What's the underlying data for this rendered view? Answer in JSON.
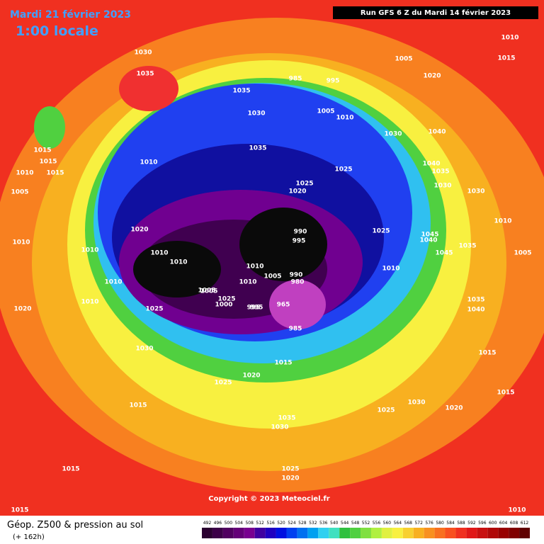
{
  "header": {
    "valid_date": "Mardi 21 février 2023",
    "local_time": "1:00 locale",
    "run_info": "Run GFS 6 Z du Mardi 14 février 2023"
  },
  "map": {
    "copyright": "Copyright © 2023 Meteociel.fr",
    "pressure_labels": [
      1030,
      1035,
      1005,
      1020,
      1015,
      1010,
      985,
      995,
      1005,
      1010,
      1035,
      1030,
      1040,
      1015,
      1015,
      1015,
      1010,
      1005,
      1010,
      1035,
      1030,
      1025,
      1020,
      1025,
      1040,
      1035,
      1030,
      1030,
      1025,
      1020,
      990,
      995,
      1010,
      1010,
      1010,
      1005,
      990,
      980,
      1010,
      995,
      965,
      985,
      1005,
      1025,
      1025,
      1010,
      1045,
      1040,
      1045,
      1035,
      1010,
      1020,
      1030,
      1015,
      1020,
      1025,
      1015,
      1035,
      1030,
      1015,
      1025,
      1020,
      1030,
      1025,
      1020,
      1015,
      1015,
      1010,
      1005,
      1015,
      1010,
      1010,
      1010,
      1010,
      1035,
      1040,
      1005,
      1000,
      995
    ]
  },
  "footer": {
    "title": "Géop. Z500 & pression au sol",
    "lead": "(+ 162h)"
  },
  "legend": {
    "values": [
      492,
      496,
      500,
      504,
      508,
      512,
      516,
      520,
      524,
      528,
      532,
      536,
      540,
      544,
      548,
      552,
      556,
      560,
      564,
      568,
      572,
      576,
      580,
      584,
      588,
      592,
      596,
      600,
      604,
      608,
      612
    ],
    "colors": [
      "#2a0030",
      "#3c0048",
      "#500060",
      "#640078",
      "#780090",
      "#4000a0",
      "#2000c0",
      "#0010e0",
      "#0040f0",
      "#0070f0",
      "#00a0f0",
      "#30d0f0",
      "#40e0c0",
      "#30c040",
      "#50d040",
      "#80e040",
      "#b0f040",
      "#e0f040",
      "#f8f040",
      "#f8d030",
      "#f8b020",
      "#f89020",
      "#f87020",
      "#f85020",
      "#f03020",
      "#e01818",
      "#c81010",
      "#b00808",
      "#980000",
      "#800000",
      "#600000"
    ]
  }
}
